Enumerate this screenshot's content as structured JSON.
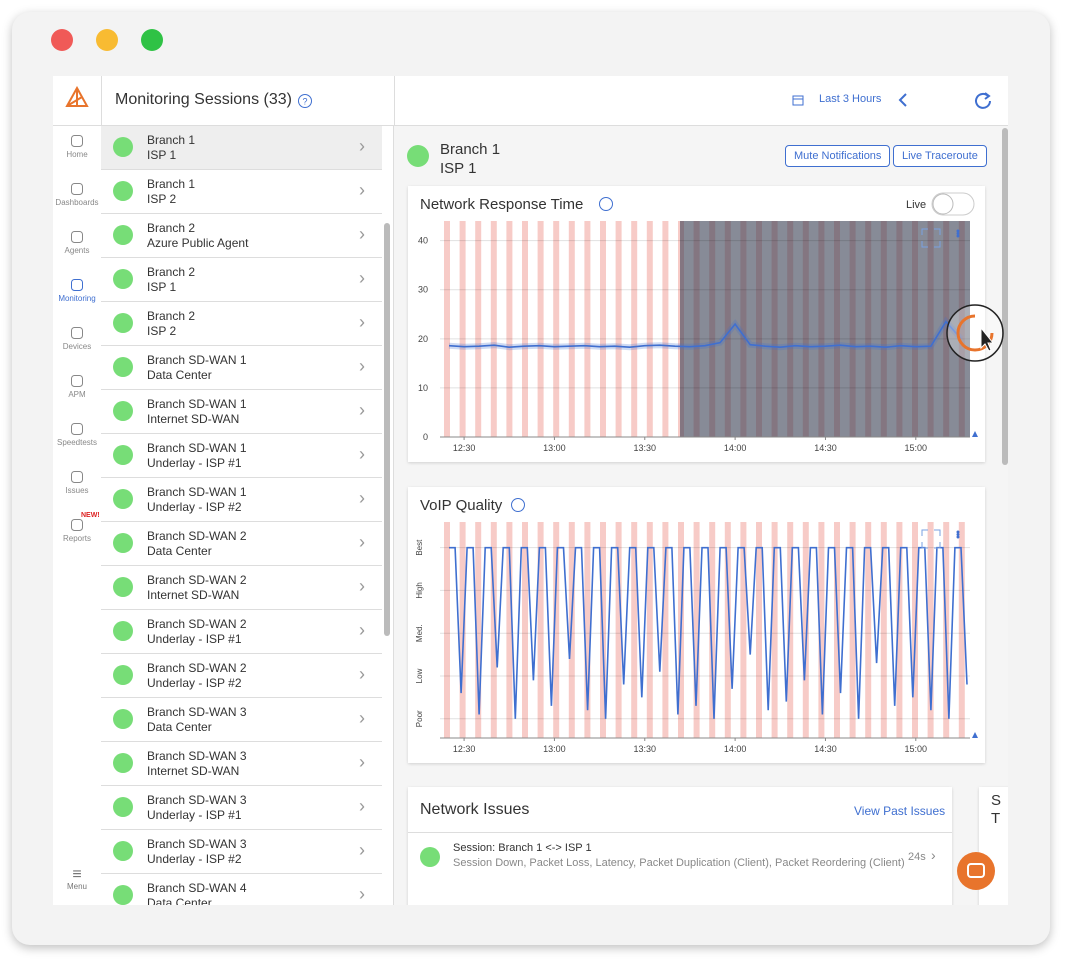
{
  "header": {
    "title": "Monitoring Sessions (33)",
    "range": "Last 3 Hours"
  },
  "sidebar": {
    "nav": [
      "Home",
      "Dashboards",
      "Agents",
      "Monitoring",
      "Devices",
      "APM",
      "Speedtests",
      "Issues",
      "Reports"
    ],
    "badge": "NEW!",
    "menu": "Menu"
  },
  "sessions": [
    [
      "Branch 1",
      "ISP 1"
    ],
    [
      "Branch 1",
      "ISP 2"
    ],
    [
      "Branch 2",
      "Azure Public Agent"
    ],
    [
      "Branch 2",
      "ISP 1"
    ],
    [
      "Branch 2",
      "ISP 2"
    ],
    [
      "Branch SD-WAN 1",
      "Data Center"
    ],
    [
      "Branch SD-WAN 1",
      "Internet SD-WAN"
    ],
    [
      "Branch SD-WAN 1",
      "Underlay - ISP #1"
    ],
    [
      "Branch SD-WAN 1",
      "Underlay - ISP #2"
    ],
    [
      "Branch SD-WAN 2",
      "Data Center"
    ],
    [
      "Branch SD-WAN 2",
      "Internet SD-WAN"
    ],
    [
      "Branch SD-WAN 2",
      "Underlay - ISP #1"
    ],
    [
      "Branch SD-WAN 2",
      "Underlay - ISP #2"
    ],
    [
      "Branch SD-WAN 3",
      "Data Center"
    ],
    [
      "Branch SD-WAN 3",
      "Internet SD-WAN"
    ],
    [
      "Branch SD-WAN 3",
      "Underlay - ISP #1"
    ],
    [
      "Branch SD-WAN 3",
      "Underlay - ISP #2"
    ],
    [
      "Branch SD-WAN 4",
      "Data Center"
    ]
  ],
  "detail": {
    "name": "Branch 1",
    "target": "ISP 1",
    "buttons": [
      "Mute Notifications",
      "Live Traceroute"
    ],
    "live": "Live"
  },
  "chart_data": [
    {
      "type": "line",
      "title": "Network Response Time",
      "color": "#3f6fd0",
      "x": [
        745,
        750,
        755,
        760,
        765,
        770,
        775,
        780,
        785,
        790,
        795,
        800,
        805,
        810,
        815,
        820,
        825,
        830,
        835,
        840,
        845,
        850,
        855,
        860,
        865,
        870,
        875,
        880,
        885,
        890,
        895,
        900,
        905,
        910,
        915
      ],
      "values": [
        18.6,
        18.4,
        18.5,
        18.7,
        18.3,
        18.5,
        18.6,
        18.4,
        18.5,
        18.6,
        18.4,
        18.5,
        18.3,
        18.6,
        18.7,
        18.5,
        18.4,
        18.6,
        19.2,
        23.0,
        18.8,
        18.5,
        18.3,
        18.6,
        18.4,
        18.5,
        18.7,
        18.4,
        18.5,
        18.3,
        18.6,
        18.4,
        18.5,
        23.5,
        20.0
      ],
      "xlim": [
        742,
        918
      ],
      "ylim": [
        0,
        44
      ],
      "yticks": [
        0,
        10,
        20,
        30,
        40
      ],
      "xticks": [
        {
          "value": 750,
          "label": "12:30"
        },
        {
          "value": 780,
          "label": "13:00"
        },
        {
          "value": 810,
          "label": "13:30"
        },
        {
          "value": 840,
          "label": "14:00"
        },
        {
          "value": 870,
          "label": "14:30"
        },
        {
          "value": 900,
          "label": "15:00"
        }
      ]
    },
    {
      "type": "line",
      "title": "VoIP Quality",
      "color": "#3f6fd0",
      "x": [
        745,
        747,
        749,
        751,
        753,
        755,
        757,
        759,
        761,
        763,
        765,
        767,
        769,
        771,
        773,
        775,
        777,
        779,
        781,
        783,
        785,
        787,
        789,
        791,
        793,
        795,
        797,
        799,
        801,
        803,
        805,
        807,
        809,
        811,
        813,
        815,
        817,
        819,
        821,
        823,
        825,
        827,
        829,
        831,
        833,
        835,
        837,
        839,
        841,
        843,
        845,
        847,
        849,
        851,
        853,
        855,
        857,
        859,
        861,
        863,
        865,
        867,
        869,
        871,
        873,
        875,
        877,
        879,
        881,
        883,
        885,
        887,
        889,
        891,
        893,
        895,
        897,
        899,
        901,
        903,
        905,
        907,
        909,
        911,
        913,
        915,
        917
      ],
      "values": [
        5,
        5,
        1.6,
        5,
        5,
        1.1,
        5,
        5,
        2.2,
        5,
        5,
        1.0,
        5,
        5,
        1.9,
        5,
        5,
        1.3,
        5,
        5,
        2.4,
        5,
        5,
        1.2,
        5,
        5,
        1.0,
        5,
        5,
        1.8,
        5,
        5,
        1.5,
        5,
        5,
        2.1,
        5,
        5,
        1.1,
        5,
        5,
        1.3,
        5,
        5,
        1.0,
        5,
        5,
        1.7,
        5,
        5,
        2.5,
        5,
        5,
        1.2,
        5,
        5,
        1.4,
        5,
        5,
        1.9,
        5,
        5,
        1.1,
        5,
        5,
        1.6,
        5,
        5,
        1.0,
        5,
        5,
        2.3,
        5,
        5,
        1.3,
        5,
        5,
        1.5,
        5,
        5,
        1.2,
        5,
        5,
        1.0,
        5,
        5,
        1.8
      ],
      "xlim": [
        742,
        918
      ],
      "ylim": [
        0.55,
        5.6
      ],
      "yticks": [
        {
          "value": 1,
          "label": "Poor"
        },
        {
          "value": 2,
          "label": "Low"
        },
        {
          "value": 3,
          "label": "Med."
        },
        {
          "value": 4,
          "label": "High"
        },
        {
          "value": 5,
          "label": "Best"
        }
      ],
      "xticks": [
        {
          "value": 750,
          "label": "12:30"
        },
        {
          "value": 780,
          "label": "13:00"
        },
        {
          "value": 810,
          "label": "13:30"
        },
        {
          "value": 840,
          "label": "14:00"
        },
        {
          "value": 870,
          "label": "14:30"
        },
        {
          "value": 900,
          "label": "15:00"
        }
      ]
    }
  ],
  "issues": {
    "title": "Network Issues",
    "link": "View Past Issues",
    "session": "Session:  Branch 1  <->  ISP 1",
    "detail": "Session Down, Packet Loss, Latency, Packet Duplication (Client), Packet Reordering (Client)",
    "age": "24s"
  },
  "side_card": [
    "S",
    "T"
  ]
}
